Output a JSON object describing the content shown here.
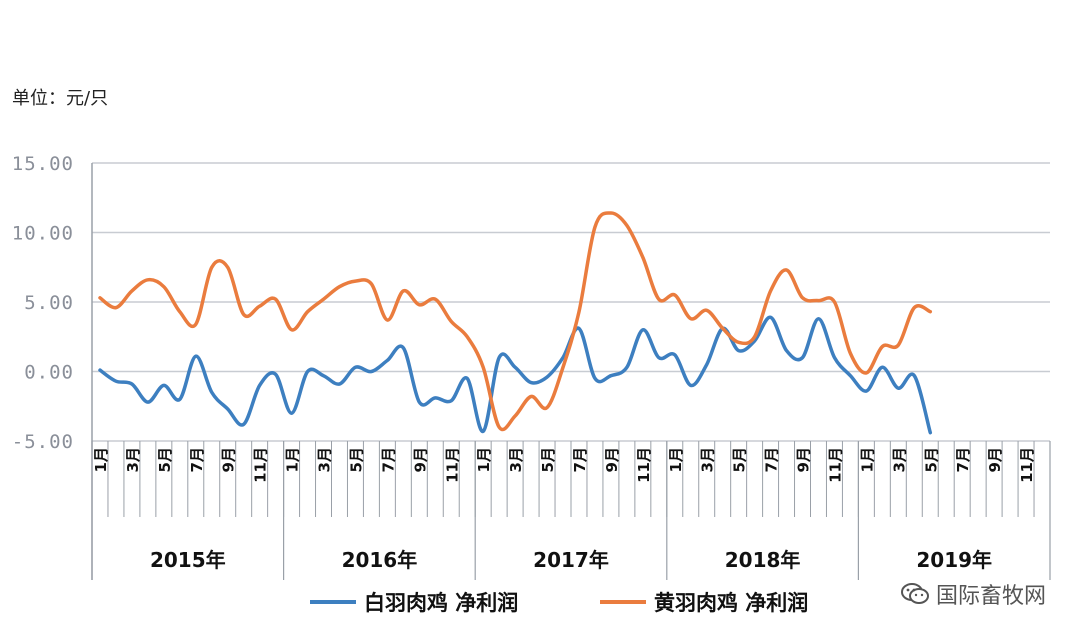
{
  "unit_label": "单位：元/只",
  "watermark": "国际畜牧网",
  "colors": {
    "white": "#3d7fc0",
    "yellow": "#ea7c3e",
    "grid": "#c8ccd2",
    "axis": "#9aa0a8"
  },
  "chart_data": {
    "type": "line",
    "title": "",
    "ylim": [
      -5,
      15
    ],
    "y_ticks": [
      15,
      10,
      5,
      0,
      -5
    ],
    "y_tick_labels": [
      "15.00",
      "10.00",
      "5.00",
      "0.00",
      "-5.00"
    ],
    "years": [
      "2015年",
      "2016年",
      "2017年",
      "2018年",
      "2019年"
    ],
    "month_labels": [
      "1月",
      "3月",
      "5月",
      "7月",
      "9月",
      "11月"
    ],
    "months_per_year": 12,
    "series": [
      {
        "name": "白羽肉鸡 净利润",
        "color": "#3d7fc0",
        "values": [
          0.1,
          -0.7,
          -0.9,
          -2.2,
          -1.0,
          -2.0,
          1.1,
          -1.5,
          -2.7,
          -3.8,
          -1.0,
          -0.2,
          -3.0,
          0.0,
          -0.3,
          -0.9,
          0.3,
          0.0,
          0.8,
          1.7,
          -2.2,
          -1.9,
          -2.1,
          -0.5,
          -4.3,
          1.0,
          0.3,
          -0.8,
          -0.4,
          1.0,
          3.1,
          -0.5,
          -0.3,
          0.3,
          3.0,
          1.0,
          1.2,
          -1.0,
          0.5,
          3.1,
          1.5,
          2.2,
          3.9,
          1.5,
          1.0,
          3.8,
          1.0,
          -0.3,
          -1.4,
          0.3,
          -1.2,
          -0.3,
          -4.4
        ]
      },
      {
        "name": "黄羽肉鸡 净利润",
        "color": "#ea7c3e",
        "values": [
          5.3,
          4.6,
          5.8,
          6.6,
          6.1,
          4.3,
          3.4,
          7.5,
          7.5,
          4.1,
          4.7,
          5.2,
          3.0,
          4.3,
          5.2,
          6.1,
          6.5,
          6.3,
          3.7,
          5.8,
          4.8,
          5.2,
          3.6,
          2.5,
          0.3,
          -4.0,
          -3.2,
          -1.8,
          -2.6,
          0.3,
          4.3,
          10.4,
          11.4,
          10.5,
          8.2,
          5.2,
          5.5,
          3.8,
          4.4,
          3.1,
          2.1,
          2.5,
          5.8,
          7.3,
          5.3,
          5.1,
          5.0,
          1.3,
          -0.1,
          1.8,
          1.9,
          4.6,
          4.3
        ]
      }
    ]
  }
}
